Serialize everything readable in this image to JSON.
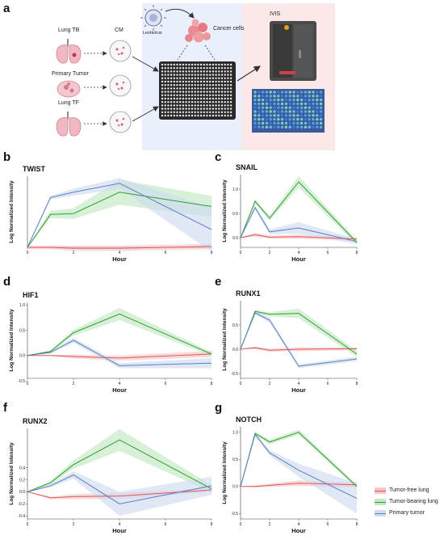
{
  "figure": {
    "panel_letters": [
      "a",
      "b",
      "c",
      "d",
      "e",
      "f",
      "g"
    ],
    "schematic": {
      "lung_tb": "Lung TB",
      "cm": "CM",
      "primary_tumor": "Primary Tumor",
      "lung_tf": "Lung TF",
      "lentivirus": "Lentivirus",
      "cancer_cells": "Cancer cells",
      "ivis": "IVIS"
    },
    "legend": [
      {
        "name": "Tumor-free lung",
        "color": "#e15759"
      },
      {
        "name": "Tumor-bearing lung",
        "color": "#2ca02c"
      },
      {
        "name": "Primary tumor",
        "color": "#5b7fc4"
      }
    ],
    "colors": {
      "red": "#e15759",
      "green": "#2ca02c",
      "blue": "#5b7fc4",
      "red_band": "#f4c6c7",
      "green_band": "#c3e8c3",
      "blue_band": "#cfdcf1"
    }
  },
  "chart_data": [
    {
      "type": "line",
      "panel": "b",
      "title": "TWIST",
      "xlabel": "Hour",
      "ylabel": "Log Normalized Intensity",
      "x": [
        0,
        1,
        2,
        4,
        8
      ],
      "xlim": [
        0,
        8
      ],
      "ylim": [
        0,
        0.8
      ],
      "xticks": [
        0,
        2,
        4,
        6,
        8
      ],
      "yticks": [],
      "series": [
        {
          "name": "Tumor-free lung",
          "values": [
            0,
            0,
            -0.01,
            -0.01,
            0.01
          ],
          "band": [
            0.02,
            0.02,
            0.03,
            0.03,
            0.03
          ]
        },
        {
          "name": "Tumor-bearing lung",
          "values": [
            0,
            0.37,
            0.38,
            0.62,
            0.46
          ],
          "band": [
            0,
            0.04,
            0.06,
            0.14,
            0.12
          ]
        },
        {
          "name": "Primary tumor",
          "values": [
            0,
            0.56,
            0.62,
            0.72,
            0.2
          ],
          "band": [
            0,
            0.02,
            0.04,
            0.06,
            0.25
          ]
        }
      ]
    },
    {
      "type": "line",
      "panel": "c",
      "title": "SNAIL",
      "xlabel": "Hour",
      "ylabel": "Log Normalized Intensity",
      "x": [
        0,
        1,
        2,
        4,
        8
      ],
      "xlim": [
        0,
        8
      ],
      "ylim": [
        -0.2,
        1.3
      ],
      "xticks": [
        0,
        2,
        4,
        6,
        8
      ],
      "yticks": [
        0.0,
        0.5,
        1.0
      ],
      "series": [
        {
          "name": "Tumor-free lung",
          "values": [
            0,
            0.06,
            0.01,
            0.02,
            -0.03
          ],
          "band": [
            0.01,
            0.04,
            0.03,
            0.04,
            0.04
          ]
        },
        {
          "name": "Tumor-bearing lung",
          "values": [
            0,
            0.75,
            0.4,
            1.15,
            -0.1
          ],
          "band": [
            0,
            0.05,
            0.05,
            0.12,
            0.05
          ]
        },
        {
          "name": "Primary tumor",
          "values": [
            0,
            0.62,
            0.12,
            0.2,
            -0.08
          ],
          "band": [
            0,
            0.05,
            0.05,
            0.12,
            0.05
          ]
        }
      ]
    },
    {
      "type": "line",
      "panel": "d",
      "title": "HIF1",
      "xlabel": "Hour",
      "ylabel": "Log Normalized Intensity",
      "x": [
        0,
        1,
        2,
        4,
        8
      ],
      "xlim": [
        0,
        8
      ],
      "ylim": [
        -0.45,
        1.05
      ],
      "xticks": [
        0,
        2,
        4,
        6,
        8
      ],
      "yticks": [
        -0.5,
        0.0,
        0.5,
        1.0
      ],
      "series": [
        {
          "name": "Tumor-free lung",
          "values": [
            0,
            0,
            -0.02,
            -0.05,
            0.03
          ],
          "band": [
            0,
            0.01,
            0.04,
            0.05,
            0.06
          ]
        },
        {
          "name": "Tumor-bearing lung",
          "values": [
            0,
            0.08,
            0.45,
            0.82,
            0.03
          ],
          "band": [
            0,
            0.02,
            0.06,
            0.12,
            0.04
          ]
        },
        {
          "name": "Primary tumor",
          "values": [
            0,
            0.06,
            0.3,
            -0.2,
            -0.15
          ],
          "band": [
            0,
            0.02,
            0.05,
            0.05,
            0.1
          ]
        }
      ]
    },
    {
      "type": "line",
      "panel": "e",
      "title": "RUNX1",
      "xlabel": "Hour",
      "ylabel": "Log Normalized Intensity",
      "x": [
        0,
        1,
        2,
        4,
        8
      ],
      "xlim": [
        0,
        8
      ],
      "ylim": [
        -0.6,
        1.0
      ],
      "xticks": [
        0,
        2,
        4,
        6,
        8
      ],
      "yticks": [
        -0.5,
        0.0,
        0.5
      ],
      "series": [
        {
          "name": "Tumor-free lung",
          "values": [
            0,
            0.03,
            -0.02,
            0,
            0.01
          ],
          "band": [
            0,
            0.03,
            0.03,
            0.04,
            0.03
          ]
        },
        {
          "name": "Tumor-bearing lung",
          "values": [
            0,
            0.78,
            0.72,
            0.74,
            -0.1
          ],
          "band": [
            0,
            0.04,
            0.04,
            0.1,
            0.06
          ]
        },
        {
          "name": "Primary tumor",
          "values": [
            0,
            0.75,
            0.6,
            -0.35,
            -0.2
          ],
          "band": [
            0,
            0.04,
            0.05,
            0.04,
            0.05
          ]
        }
      ]
    },
    {
      "type": "line",
      "panel": "f",
      "title": "RUNX2",
      "xlabel": "Hour",
      "ylabel": "Log Normalized Intensity",
      "x": [
        0,
        1,
        2,
        4,
        8
      ],
      "xlim": [
        0,
        8
      ],
      "ylim": [
        -0.45,
        1.05
      ],
      "xticks": [
        0,
        2,
        4,
        6,
        8
      ],
      "yticks": [
        -0.4,
        -0.2,
        0.0,
        0.2,
        0.4
      ],
      "series": [
        {
          "name": "Tumor-free lung",
          "values": [
            0,
            -0.1,
            -0.08,
            -0.07,
            0.03
          ],
          "band": [
            0,
            0.02,
            0.04,
            0.05,
            0.03
          ]
        },
        {
          "name": "Tumor-bearing lung",
          "values": [
            0,
            0.15,
            0.45,
            0.86,
            0.05
          ],
          "band": [
            0,
            0.03,
            0.07,
            0.18,
            0.06
          ]
        },
        {
          "name": "Primary tumor",
          "values": [
            0,
            0.1,
            0.28,
            -0.2,
            0.1
          ],
          "band": [
            0,
            0.03,
            0.06,
            0.2,
            0.15
          ]
        }
      ]
    },
    {
      "type": "line",
      "panel": "g",
      "title": "NOTCH",
      "xlabel": "Hour",
      "ylabel": "Log Normalized Intensity",
      "x": [
        0,
        1,
        2,
        4,
        8
      ],
      "xlim": [
        0,
        8
      ],
      "ylim": [
        -0.6,
        1.1
      ],
      "xticks": [
        0,
        2,
        4,
        6,
        8
      ],
      "yticks": [
        -0.5,
        0.0,
        0.5,
        1.0
      ],
      "series": [
        {
          "name": "Tumor-free lung",
          "values": [
            0,
            0,
            0.02,
            0.06,
            0.03
          ],
          "band": [
            0,
            0.02,
            0.03,
            0.05,
            0.05
          ]
        },
        {
          "name": "Tumor-bearing lung",
          "values": [
            0,
            0.98,
            0.82,
            1.0,
            0
          ],
          "band": [
            0,
            0.03,
            0.04,
            0.05,
            0.04
          ]
        },
        {
          "name": "Primary tumor",
          "values": [
            0,
            0.96,
            0.62,
            0.3,
            -0.22
          ],
          "band": [
            0,
            0.03,
            0.05,
            0.12,
            0.28
          ]
        }
      ]
    }
  ]
}
